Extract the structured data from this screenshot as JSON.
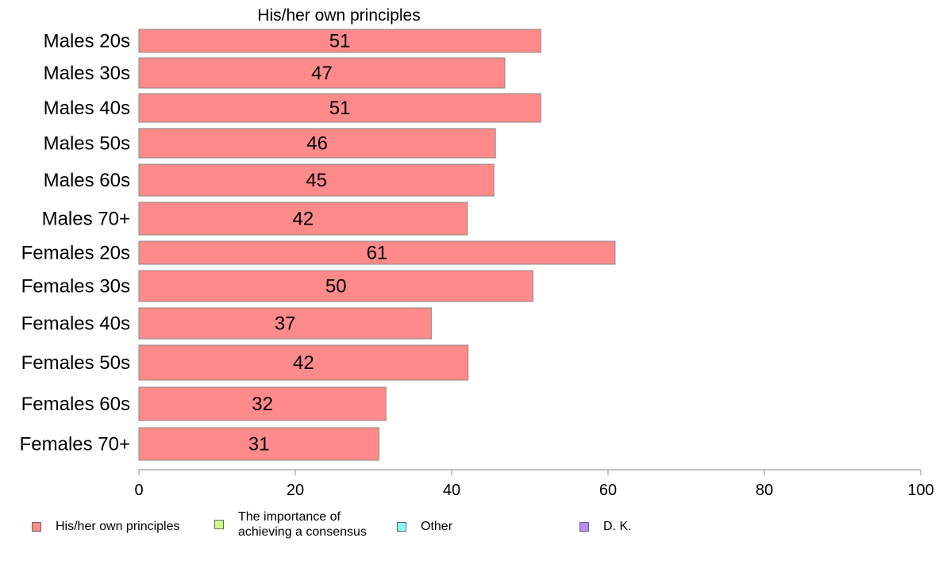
{
  "chart_data": {
    "type": "bar",
    "orientation": "horizontal",
    "title": "His/her own principles",
    "categories": [
      "Males 20s",
      "Males 30s",
      "Males 40s",
      "Males 50s",
      "Males 60s",
      "Males 70+",
      "Females 20s",
      "Females 30s",
      "Females 40s",
      "Females 50s",
      "Females 60s",
      "Females 70+"
    ],
    "series": [
      {
        "name": "His/her own principles",
        "values": [
          51.4,
          46.8,
          51.4,
          45.6,
          45.4,
          42.0,
          60.9,
          50.4,
          37.4,
          42.1,
          31.6,
          30.7
        ],
        "labels": [
          "51",
          "47",
          "51",
          "46",
          "45",
          "42",
          "61",
          "50",
          "37",
          "42",
          "32",
          "31"
        ],
        "color": "#ff8a8a"
      }
    ],
    "xlim": [
      0,
      100
    ],
    "xticks": [
      "0",
      "20",
      "40",
      "60",
      "80",
      "100"
    ],
    "grid": false,
    "legend": [
      {
        "label": "His/her own principles",
        "color": "#ff8a8a"
      },
      {
        "label": "The importance of\nachieving a consensus",
        "color": "#ccff88"
      },
      {
        "label": "Other",
        "color": "#88ffff"
      },
      {
        "label": "D. K.",
        "color": "#bb88ff"
      }
    ],
    "legend_position": "bottom"
  }
}
